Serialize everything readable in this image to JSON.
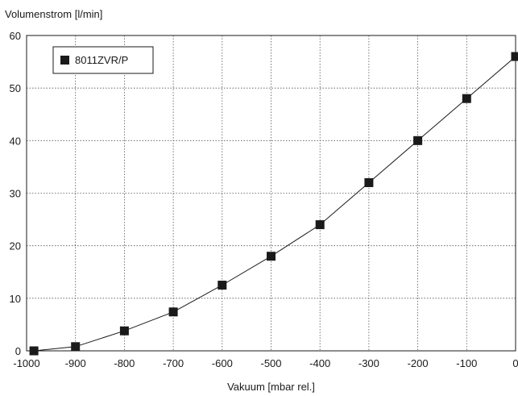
{
  "chart_data": {
    "type": "line",
    "xlabel": "Vakuum [mbar rel.]",
    "ylabel": "Volumenstrom [l/min]",
    "xlim": [
      -1000,
      0
    ],
    "ylim": [
      0,
      60
    ],
    "x_ticks": [
      -1000,
      -900,
      -800,
      -700,
      -600,
      -500,
      -400,
      -300,
      -200,
      -100,
      0
    ],
    "y_ticks": [
      0,
      10,
      20,
      30,
      40,
      50,
      60
    ],
    "grid": true,
    "legend_position": "top-left",
    "series": [
      {
        "name": "8011ZVR/P",
        "marker": "square",
        "color": "#1a1a1a",
        "x": [
          -985,
          -900,
          -800,
          -700,
          -600,
          -500,
          -400,
          -300,
          -200,
          -100,
          0
        ],
        "y": [
          0,
          0.8,
          3.8,
          7.4,
          12.5,
          18,
          24,
          32,
          40,
          48,
          56
        ]
      }
    ]
  }
}
